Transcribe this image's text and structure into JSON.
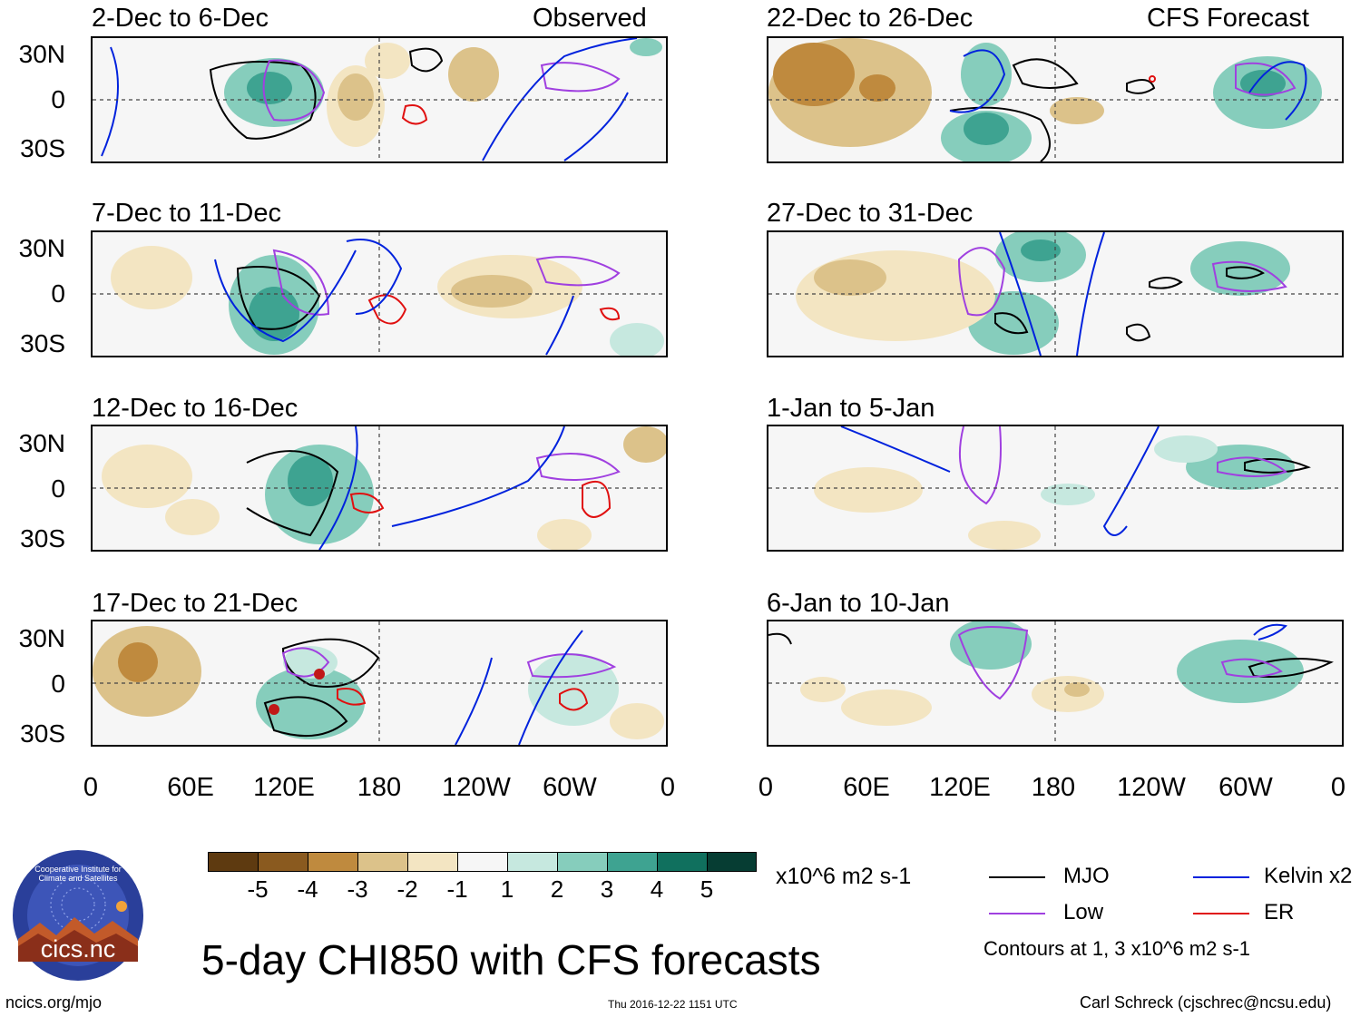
{
  "observed_label": "Observed",
  "forecast_label": "CFS Forecast",
  "panels": {
    "observed": [
      {
        "title": "2-Dec to 6-Dec"
      },
      {
        "title": "7-Dec to 11-Dec"
      },
      {
        "title": "12-Dec to 16-Dec"
      },
      {
        "title": "17-Dec to 21-Dec"
      }
    ],
    "forecast": [
      {
        "title": "22-Dec to 26-Dec"
      },
      {
        "title": "27-Dec to 31-Dec"
      },
      {
        "title": "1-Jan to 5-Jan"
      },
      {
        "title": "6-Jan to 10-Jan"
      }
    ]
  },
  "lat_labels": [
    "30N",
    "0",
    "30S"
  ],
  "lon_labels": [
    "0",
    "60E",
    "120E",
    "180",
    "120W",
    "60W",
    "0"
  ],
  "colorbar": {
    "labels": [
      "-5",
      "-4",
      "-3",
      "-2",
      "-1",
      "1",
      "2",
      "3",
      "4",
      "5"
    ],
    "colors": [
      "#5e3a10",
      "#8a5a1f",
      "#bf8a3e",
      "#dcc28a",
      "#f3e5c2",
      "#f6f6f6",
      "#c6e8df",
      "#86cdbc",
      "#3ea391",
      "#10705e",
      "#063d33"
    ],
    "units": "x10^6 m2 s-1"
  },
  "legend": {
    "mjo": {
      "label": "MJO",
      "color": "#000000"
    },
    "kelvin": {
      "label": "Kelvin x2",
      "color": "#0022dd"
    },
    "low": {
      "label": "Low",
      "color": "#a040e0"
    },
    "er": {
      "label": "ER",
      "color": "#e01010"
    },
    "note": "Contours at 1, 3 x10^6 m2 s-1"
  },
  "main_title": "5-day CHI850 with CFS forecasts",
  "logo_text": "cics.nc",
  "logo_ring_text": "Cooperative Institute for Climate and Satellites",
  "footer": {
    "url": "ncics.org/mjo",
    "timestamp": "Thu 2016-12-22 1151 UTC",
    "author": "Carl Schreck (cjschrec@ncsu.edu)"
  }
}
